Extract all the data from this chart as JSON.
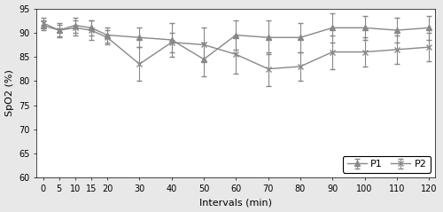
{
  "x": [
    0,
    5,
    10,
    15,
    20,
    30,
    40,
    50,
    60,
    70,
    80,
    90,
    100,
    110,
    120
  ],
  "p1_y": [
    91.5,
    90.5,
    91.5,
    91.0,
    89.5,
    89.0,
    88.5,
    84.5,
    89.5,
    89.0,
    89.0,
    91.0,
    91.0,
    90.5,
    91.0
  ],
  "p1_err": [
    1.0,
    1.2,
    1.5,
    1.5,
    1.5,
    2.0,
    3.5,
    3.5,
    3.0,
    3.5,
    3.0,
    3.0,
    2.5,
    2.5,
    2.5
  ],
  "p2_y": [
    92.0,
    90.5,
    91.0,
    90.5,
    89.0,
    83.5,
    88.0,
    87.5,
    85.5,
    82.5,
    83.0,
    86.0,
    86.0,
    86.5,
    87.0
  ],
  "p2_err": [
    1.0,
    1.5,
    1.5,
    2.0,
    1.5,
    3.5,
    2.0,
    3.5,
    4.0,
    3.5,
    3.0,
    3.5,
    3.0,
    3.0,
    3.0
  ],
  "ylabel": "SpO2 (%)",
  "xlabel": "Intervals (min)",
  "ylim": [
    60,
    95
  ],
  "yticks": [
    60,
    65,
    70,
    75,
    80,
    85,
    90,
    95
  ],
  "xticks": [
    0,
    5,
    10,
    15,
    20,
    30,
    40,
    50,
    60,
    70,
    80,
    90,
    100,
    110,
    120
  ],
  "line_color": "#888888",
  "p1_marker": "^",
  "p2_marker": "x",
  "legend_labels": [
    "P1",
    "P2"
  ],
  "bg_color": "#e8e8e8",
  "plot_bg_color": "#ffffff",
  "font_size": 8,
  "legend_fontsize": 8,
  "tick_fontsize": 7
}
